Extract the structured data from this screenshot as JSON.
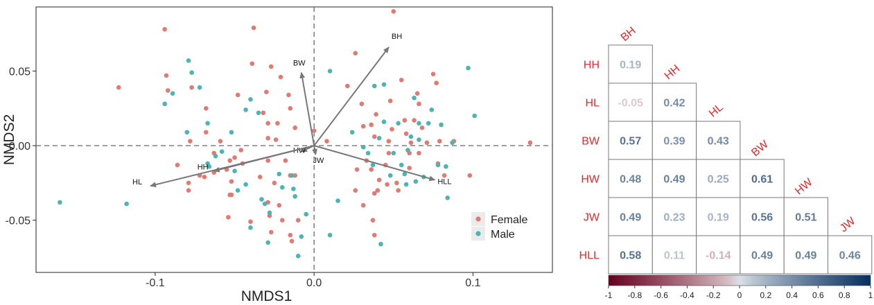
{
  "chart_data": [
    {
      "type": "scatter",
      "xlabel": "NMDS1",
      "ylabel": "NMDS2",
      "xlim": [
        -0.175,
        0.15
      ],
      "ylim": [
        -0.085,
        0.093
      ],
      "x_ticks": [
        {
          "value": -0.1,
          "label": "-0.1"
        },
        {
          "value": 0.0,
          "label": "0.0"
        },
        {
          "value": 0.1,
          "label": "0.1"
        }
      ],
      "y_ticks": [
        {
          "value": 0.05,
          "label": "0.05"
        },
        {
          "value": 0.0,
          "label": "0.00"
        },
        {
          "value": -0.05,
          "label": "-0.05"
        }
      ],
      "legend_position": "bottom-right",
      "series": [
        {
          "name": "Female",
          "color": "#E07B73",
          "points": [
            [
              -0.094,
              0.078
            ],
            [
              -0.123,
              0.039
            ],
            [
              -0.093,
              0.047
            ],
            [
              -0.092,
              0.037
            ],
            [
              -0.077,
              0.039
            ],
            [
              -0.068,
              0.025
            ],
            [
              -0.078,
              0.003
            ],
            [
              -0.086,
              -0.013
            ],
            [
              -0.079,
              -0.025
            ],
            [
              -0.072,
              -0.02
            ],
            [
              -0.079,
              -0.03
            ],
            [
              -0.069,
              -0.021
            ],
            [
              -0.068,
              0.009
            ],
            [
              -0.063,
              -0.005
            ],
            [
              -0.063,
              -0.018
            ],
            [
              -0.059,
              0.003
            ],
            [
              -0.055,
              -0.016
            ],
            [
              -0.05,
              -0.008
            ],
            [
              -0.046,
              -0.003
            ],
            [
              -0.052,
              -0.024
            ],
            [
              -0.052,
              -0.033
            ],
            [
              -0.045,
              -0.012
            ],
            [
              -0.048,
              0.034
            ],
            [
              -0.039,
              0.055
            ],
            [
              -0.038,
              0.079
            ],
            [
              -0.032,
              0.022
            ],
            [
              -0.029,
              0.015
            ],
            [
              -0.023,
              0.015
            ],
            [
              -0.03,
              0.036
            ],
            [
              -0.027,
              0.053
            ],
            [
              -0.021,
              0.046
            ],
            [
              -0.029,
              0.005
            ],
            [
              -0.029,
              -0.01
            ],
            [
              -0.034,
              -0.021
            ],
            [
              -0.029,
              -0.038
            ],
            [
              -0.028,
              -0.047
            ],
            [
              -0.027,
              -0.058
            ],
            [
              -0.04,
              -0.051
            ],
            [
              -0.053,
              -0.01
            ],
            [
              -0.053,
              -0.033
            ],
            [
              -0.054,
              -0.048
            ],
            [
              -0.025,
              -0.025
            ],
            [
              -0.022,
              -0.04
            ],
            [
              -0.018,
              -0.01
            ],
            [
              -0.02,
              -0.05
            ],
            [
              -0.015,
              -0.02
            ],
            [
              -0.015,
              -0.06
            ],
            [
              -0.014,
              -0.064
            ],
            [
              -0.012,
              -0.02
            ],
            [
              -0.01,
              -0.05
            ],
            [
              -0.016,
              0.034
            ],
            [
              -0.024,
              0.004
            ],
            [
              -0.015,
              0.025
            ],
            [
              -0.012,
              0.012
            ],
            [
              0.0,
              0.01
            ],
            [
              0.008,
              0.003
            ],
            [
              0.021,
              0.04
            ],
            [
              0.026,
              0.062
            ],
            [
              0.03,
              0.028
            ],
            [
              0.031,
              0.013
            ],
            [
              0.033,
              -0.01
            ],
            [
              0.036,
              -0.016
            ],
            [
              0.036,
              0.014
            ],
            [
              0.038,
              0.006
            ],
            [
              0.039,
              0.021
            ],
            [
              0.027,
              -0.016
            ],
            [
              0.026,
              -0.03
            ],
            [
              0.031,
              -0.04
            ],
            [
              0.038,
              -0.032
            ],
            [
              0.037,
              -0.05
            ],
            [
              0.038,
              -0.06
            ],
            [
              0.04,
              -0.03
            ],
            [
              0.041,
              -0.023
            ],
            [
              0.046,
              -0.026
            ],
            [
              0.045,
              -0.013
            ],
            [
              0.047,
              -0.005
            ],
            [
              0.047,
              0.003
            ],
            [
              0.048,
              0.03
            ],
            [
              0.049,
              0.011
            ],
            [
              0.05,
              0.09
            ],
            [
              0.052,
              -0.025
            ],
            [
              0.053,
              -0.03
            ],
            [
              0.055,
              0.044
            ],
            [
              0.057,
              0.017
            ],
            [
              0.058,
              0.008
            ],
            [
              0.06,
              -0.005
            ],
            [
              0.06,
              -0.015
            ],
            [
              0.061,
              0.002
            ],
            [
              0.063,
              0.017
            ],
            [
              0.065,
              0.035
            ],
            [
              0.066,
              -0.005
            ],
            [
              0.066,
              0.028
            ],
            [
              0.068,
              0.012
            ],
            [
              0.071,
              0.002
            ],
            [
              0.075,
              0.048
            ],
            [
              0.077,
              0.042
            ],
            [
              0.078,
              -0.012
            ],
            [
              0.079,
              0.003
            ],
            [
              0.082,
              -0.02
            ],
            [
              0.088,
              0.003
            ],
            [
              0.098,
              -0.02
            ],
            [
              0.136,
              0.002
            ]
          ]
        },
        {
          "name": "Male",
          "color": "#4DB4B4",
          "points": [
            [
              -0.16,
              -0.038
            ],
            [
              -0.118,
              -0.039
            ],
            [
              -0.094,
              0.028
            ],
            [
              -0.089,
              0.035
            ],
            [
              -0.08,
              0.009
            ],
            [
              -0.077,
              0.049
            ],
            [
              -0.079,
              0.057
            ],
            [
              -0.072,
              0.039
            ],
            [
              -0.067,
              0.015
            ],
            [
              -0.067,
              -0.012
            ],
            [
              -0.066,
              -0.014
            ],
            [
              -0.062,
              -0.007
            ],
            [
              -0.058,
              -0.004
            ],
            [
              -0.052,
              0.009
            ],
            [
              -0.05,
              -0.017
            ],
            [
              -0.048,
              -0.03
            ],
            [
              -0.043,
              -0.026
            ],
            [
              -0.043,
              0.024
            ],
            [
              -0.04,
              0.031
            ],
            [
              -0.035,
              0.022
            ],
            [
              -0.033,
              -0.036
            ],
            [
              -0.031,
              -0.039
            ],
            [
              -0.028,
              -0.045
            ],
            [
              -0.029,
              -0.065
            ],
            [
              -0.04,
              -0.055
            ],
            [
              -0.022,
              -0.019
            ],
            [
              -0.02,
              -0.028
            ],
            [
              -0.014,
              -0.02
            ],
            [
              -0.013,
              -0.029
            ],
            [
              -0.012,
              -0.034
            ],
            [
              -0.01,
              -0.074
            ],
            [
              -0.008,
              -0.061
            ],
            [
              -0.005,
              -0.046
            ],
            [
              0.01,
              0.05
            ],
            [
              0.01,
              -0.06
            ],
            [
              0.015,
              -0.037
            ],
            [
              0.024,
              0.009
            ],
            [
              0.031,
              -0.001
            ],
            [
              0.034,
              -0.005
            ],
            [
              0.037,
              -0.013
            ],
            [
              0.038,
              0.04
            ],
            [
              0.041,
              0.005
            ],
            [
              0.042,
              -0.066
            ],
            [
              0.044,
              0.041
            ],
            [
              0.044,
              0.016
            ],
            [
              0.048,
              -0.02
            ],
            [
              0.05,
              -0.005
            ],
            [
              0.053,
              0.015
            ],
            [
              0.055,
              -0.013
            ],
            [
              0.057,
              -0.019
            ],
            [
              0.058,
              -0.026
            ],
            [
              0.059,
              -0.003
            ],
            [
              0.061,
              0.006
            ],
            [
              0.063,
              0.032
            ],
            [
              0.064,
              -0.024
            ],
            [
              0.066,
              0.004
            ],
            [
              0.066,
              0.015
            ],
            [
              0.069,
              -0.021
            ],
            [
              0.072,
              0.015
            ],
            [
              0.074,
              0.024
            ],
            [
              0.078,
              -0.013
            ],
            [
              0.08,
              0.014
            ],
            [
              0.083,
              -0.014
            ],
            [
              0.084,
              -0.035
            ],
            [
              0.087,
              0.002
            ],
            [
              0.097,
              0.052
            ],
            [
              0.101,
              0.02
            ]
          ]
        }
      ],
      "vectors": [
        {
          "label": "BH",
          "x": 0.047,
          "y": 0.066
        },
        {
          "label": "BW",
          "x": -0.008,
          "y": 0.049
        },
        {
          "label": "HW",
          "x": -0.008,
          "y": -0.004
        },
        {
          "label": "JW",
          "x": 0.001,
          "y": -0.006
        },
        {
          "label": "HH",
          "x": -0.063,
          "y": -0.017
        },
        {
          "label": "HL",
          "x": -0.103,
          "y": -0.027
        },
        {
          "label": "HLL",
          "x": 0.076,
          "y": -0.023
        }
      ]
    },
    {
      "type": "heatmap",
      "variables": [
        "BH",
        "HH",
        "HL",
        "BW",
        "HW",
        "JW",
        "HLL"
      ],
      "rows": [
        {
          "label": "HH",
          "values": [
            0.19
          ]
        },
        {
          "label": "HL",
          "values": [
            -0.05,
            0.42
          ]
        },
        {
          "label": "BW",
          "values": [
            0.57,
            0.39,
            0.43
          ]
        },
        {
          "label": "HW",
          "values": [
            0.48,
            0.49,
            0.25,
            0.61
          ]
        },
        {
          "label": "JW",
          "values": [
            0.49,
            0.23,
            0.19,
            0.56,
            0.51
          ]
        },
        {
          "label": "HLL",
          "values": [
            0.58,
            0.11,
            -0.14,
            0.49,
            0.49,
            0.46
          ]
        }
      ],
      "cell_labels": {
        "HH": [
          "0.19"
        ],
        "HL": [
          "-0.05",
          "0.42"
        ],
        "BW": [
          "0.57",
          "0.39",
          "0.43"
        ],
        "HW": [
          "0.48",
          "0.49",
          "0.25",
          "0.61"
        ],
        "JW": [
          "0.49",
          "0.23",
          "0.19",
          "0.56",
          "0.51"
        ],
        "HLL": [
          "0.58",
          "0.11",
          "-0.14",
          "0.49",
          "0.49",
          "0.46"
        ]
      },
      "colorbar": {
        "range": [
          -1,
          1
        ],
        "ticks": [
          "-1",
          "-0.8",
          "-0.6",
          "-0.4",
          "-0.2",
          "0",
          "0.2",
          "0.4",
          "0.6",
          "0.8",
          "1"
        ],
        "colors": {
          "negative": "#67001F",
          "zero": "#FFFFFF",
          "positive": "#053061"
        }
      },
      "label_color": "#E8262A"
    }
  ]
}
